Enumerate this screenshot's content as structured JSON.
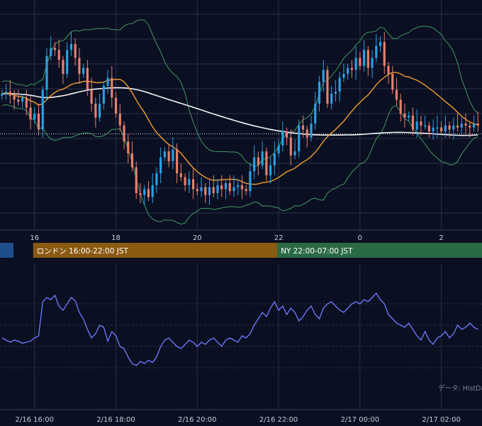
{
  "colors": {
    "background": "#0b0f22",
    "grid": "#2a3148",
    "candle_up": "#2aa0e6",
    "candle_down": "#e8806e",
    "bollinger": "#3f9a5e",
    "ma_short": "#f0a030",
    "ma_long": "#f4f4f4",
    "indicator_line": "#6f7cff",
    "london_session": "#8a5a12",
    "ny_session": "#2a6a44",
    "tokyo_session": "#1f4f8a",
    "current_price_line": "#c8ccd8"
  },
  "sessions": [
    {
      "label": "ロンドン 16:00-22:00 JST",
      "color": "#8a5a12"
    },
    {
      "label": "NY 22:00-07:00 JST",
      "color": "#2a6a44"
    }
  ],
  "source_note": "データ: HistDa",
  "chart_data": [
    {
      "type": "candlestick",
      "title": "",
      "x_tick_labels": [
        "16",
        "18",
        "20",
        "22",
        "0",
        "2"
      ],
      "x_tick_hours": [
        16,
        18,
        20,
        22,
        24,
        26
      ],
      "x_range_hours": [
        15.15,
        27.0
      ],
      "y_range": [
        0,
        100
      ],
      "current_price": 39.8,
      "grid": true,
      "series": [
        {
          "kind": "bollinger",
          "color": "#3f9a5e"
        },
        {
          "kind": "moving_average_short",
          "color": "#f0a030"
        },
        {
          "kind": "moving_average_long",
          "color": "#f4f4f4"
        }
      ],
      "candles_closes": [
        60,
        61,
        59,
        57,
        56,
        58,
        53,
        47,
        50,
        42,
        62,
        79,
        83,
        82,
        77,
        70,
        82,
        85,
        78,
        70,
        73,
        62,
        55,
        48,
        55,
        64,
        68,
        58,
        50,
        44,
        36,
        30,
        23,
        10,
        9,
        12,
        8,
        14,
        20,
        28,
        31,
        26,
        32,
        20,
        18,
        14,
        17,
        12,
        11,
        13,
        9,
        13,
        10,
        14,
        12,
        15,
        11,
        13,
        14,
        12,
        11,
        21,
        28,
        24,
        31,
        19,
        24,
        30,
        34,
        41,
        38,
        29,
        31,
        44,
        42,
        38,
        45,
        55,
        66,
        72,
        55,
        60,
        61,
        68,
        70,
        73,
        72,
        78,
        74,
        82,
        73,
        78,
        84,
        86,
        74,
        70,
        62,
        57,
        50,
        48,
        49,
        42,
        46,
        44,
        44,
        41,
        43,
        43,
        41,
        44,
        42,
        44,
        43,
        45,
        44,
        43,
        45,
        44
      ]
    },
    {
      "type": "line",
      "title": "",
      "x_tick_labels": [
        "2/16 16:00",
        "2/16 18:00",
        "2/16 20:00",
        "2/16 22:00",
        "2/17 00:00",
        "2/17 02:00"
      ],
      "x_tick_hours": [
        16,
        18,
        20,
        22,
        24,
        26
      ],
      "x_range_hours": [
        15.15,
        27.0
      ],
      "y_range": [
        0,
        100
      ],
      "grid": true,
      "values": [
        48,
        46,
        44,
        46,
        45,
        43,
        44,
        45,
        48,
        50,
        82,
        86,
        84,
        88,
        78,
        74,
        80,
        86,
        83,
        72,
        66,
        56,
        48,
        52,
        60,
        58,
        45,
        54,
        50,
        40,
        38,
        30,
        24,
        22,
        26,
        24,
        27,
        25,
        30,
        40,
        46,
        48,
        44,
        40,
        38,
        42,
        46,
        44,
        40,
        44,
        42,
        46,
        48,
        44,
        40,
        46,
        48,
        46,
        44,
        50,
        48,
        52,
        60,
        66,
        72,
        68,
        76,
        82,
        74,
        78,
        70,
        76,
        72,
        64,
        68,
        74,
        78,
        70,
        66,
        76,
        80,
        82,
        78,
        74,
        72,
        76,
        80,
        82,
        80,
        84,
        82,
        86,
        90,
        84,
        80,
        70,
        66,
        62,
        60,
        58,
        62,
        56,
        50,
        46,
        54,
        46,
        42,
        48,
        50,
        54,
        48,
        52,
        60,
        56,
        58,
        62,
        58,
        56
      ]
    }
  ]
}
